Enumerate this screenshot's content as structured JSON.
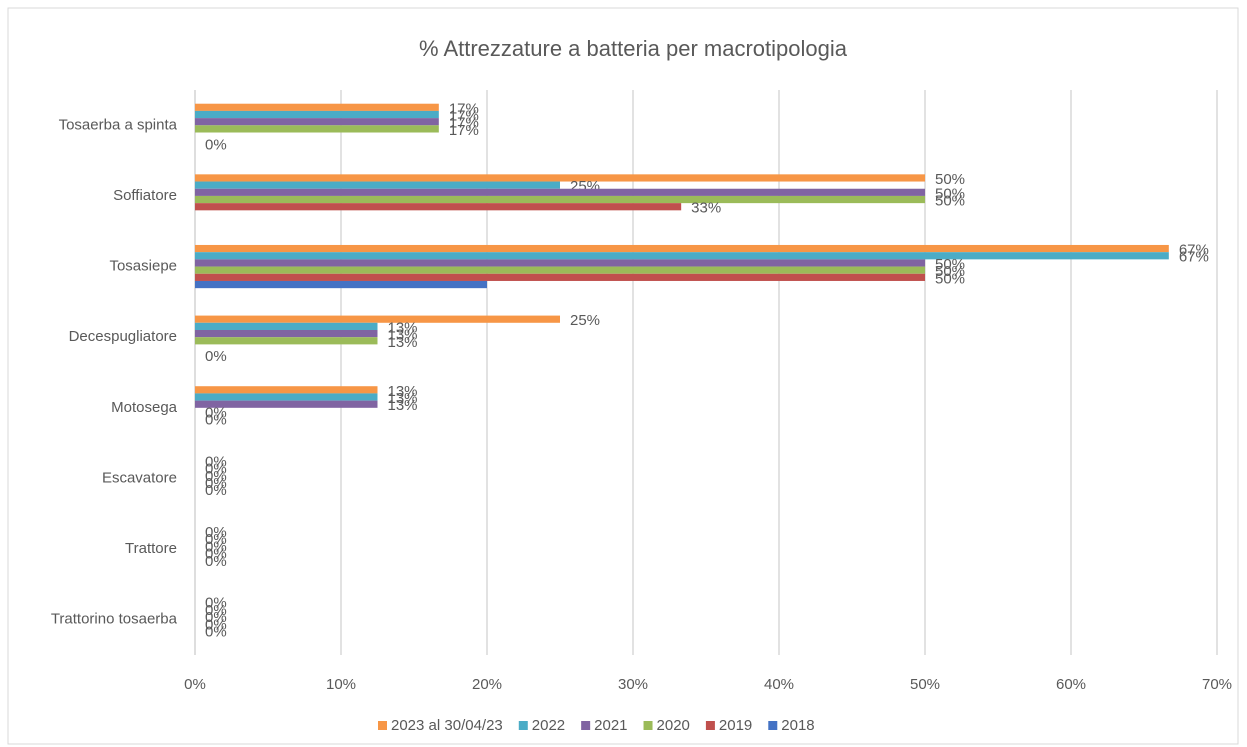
{
  "chart_data": {
    "type": "hbar",
    "title": "% Attrezzature a batteria per macrotipologia",
    "categories": [
      "Tosaerba a spinta",
      "Soffiatore",
      "Tosasiepe",
      "Decespugliatore",
      "Motosega",
      "Escavatore",
      "Trattore",
      "Trattorino tosaerba"
    ],
    "series": [
      {
        "name": "2023 al 30/04/23",
        "color": "#f79646",
        "values": [
          16.7,
          50,
          66.7,
          25,
          12.5,
          0,
          0,
          0
        ],
        "value_labels": [
          "17%",
          "50%",
          "67%",
          "25%",
          "13%",
          "0%",
          "0%",
          "0%"
        ]
      },
      {
        "name": "2022",
        "color": "#4bacc6",
        "values": [
          16.7,
          25,
          66.7,
          12.5,
          12.5,
          0,
          0,
          0
        ],
        "value_labels": [
          "17%",
          "25%",
          "67%",
          "13%",
          "13%",
          "0%",
          "0%",
          "0%"
        ]
      },
      {
        "name": "2021",
        "color": "#8064a2",
        "values": [
          16.7,
          50,
          50,
          12.5,
          12.5,
          0,
          0,
          0
        ],
        "value_labels": [
          "17%",
          "50%",
          "50%",
          "13%",
          "13%",
          "0%",
          "0%",
          "0%"
        ]
      },
      {
        "name": "2020",
        "color": "#9bbb59",
        "values": [
          16.7,
          50,
          50,
          12.5,
          0,
          0,
          0,
          0
        ],
        "value_labels": [
          "17%",
          "50%",
          "50%",
          "13%",
          "0%",
          "0%",
          "0%",
          "0%"
        ]
      },
      {
        "name": "2019",
        "color": "#c0504d",
        "values": [
          null,
          33.3,
          50,
          null,
          0,
          0,
          0,
          0
        ],
        "value_labels": [
          null,
          "33%",
          "50%",
          null,
          "0%",
          "0%",
          "0%",
          "0%"
        ]
      },
      {
        "name": "2018",
        "color": "#4472c4",
        "values": [
          0,
          null,
          20,
          0,
          null,
          null,
          null,
          null
        ],
        "value_labels": [
          "0%",
          null,
          null,
          "0%",
          null,
          null,
          null,
          null
        ]
      }
    ],
    "xlim": [
      0,
      70
    ],
    "xticks": [
      {
        "value": 0,
        "label": "0%"
      },
      {
        "value": 10,
        "label": "10%"
      },
      {
        "value": 20,
        "label": "20%"
      },
      {
        "value": 30,
        "label": "30%"
      },
      {
        "value": 40,
        "label": "40%"
      },
      {
        "value": 50,
        "label": "50%"
      },
      {
        "value": 60,
        "label": "60%"
      },
      {
        "value": 70,
        "label": "70%"
      }
    ],
    "grid": true,
    "legend": "bottom"
  }
}
